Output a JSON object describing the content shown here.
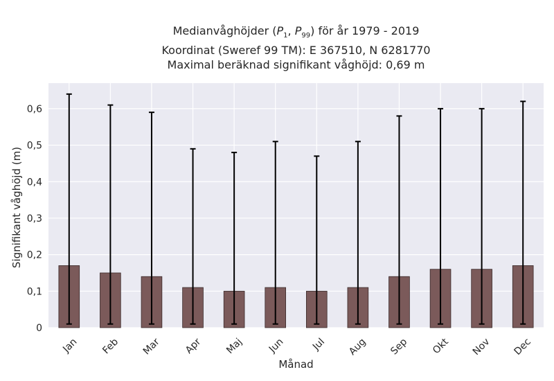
{
  "title": {
    "line1_prefix": "Medianvåghöjder (",
    "p_symbol": "P",
    "p1_sub": "1",
    "sep": ", ",
    "p99_sub": "99",
    "line1_suffix": ") för år 1979 - 2019",
    "line2": "Koordinat (Sweref 99 TM): E 367510, N 6281770",
    "line3": "Maximal beräknad signifikant våghöjd: 0,69 m"
  },
  "colors": {
    "plot_background": "#eaeaf2",
    "grid": "#ffffff",
    "bar_fill": "#7b5a5a",
    "bar_edge": "#3a2a2a",
    "error_bar": "#000000"
  },
  "chart_data": {
    "type": "bar",
    "xlabel": "Månad",
    "ylabel": "Signifikant våghöjd (m)",
    "categories": [
      "Jan",
      "Feb",
      "Mar",
      "Apr",
      "Maj",
      "Jun",
      "Jul",
      "Aug",
      "Sep",
      "Okt",
      "Nov",
      "Dec"
    ],
    "series": [
      {
        "values": [
          0.17,
          0.15,
          0.14,
          0.11,
          0.1,
          0.11,
          0.1,
          0.11,
          0.14,
          0.16,
          0.16,
          0.17
        ],
        "error_low": [
          0.01,
          0.01,
          0.01,
          0.01,
          0.01,
          0.01,
          0.01,
          0.01,
          0.01,
          0.01,
          0.01,
          0.01
        ],
        "error_high": [
          0.64,
          0.61,
          0.59,
          0.49,
          0.48,
          0.51,
          0.47,
          0.51,
          0.58,
          0.6,
          0.6,
          0.62
        ]
      }
    ],
    "ylim": [
      0,
      0.67
    ],
    "yticks": [
      0,
      0.1,
      0.2,
      0.3,
      0.4,
      0.5,
      0.6
    ],
    "ytick_labels": [
      "0",
      "0,1",
      "0,2",
      "0,3",
      "0,4",
      "0,5",
      "0,6"
    ],
    "grid": true,
    "xtick_rotation": 45
  }
}
